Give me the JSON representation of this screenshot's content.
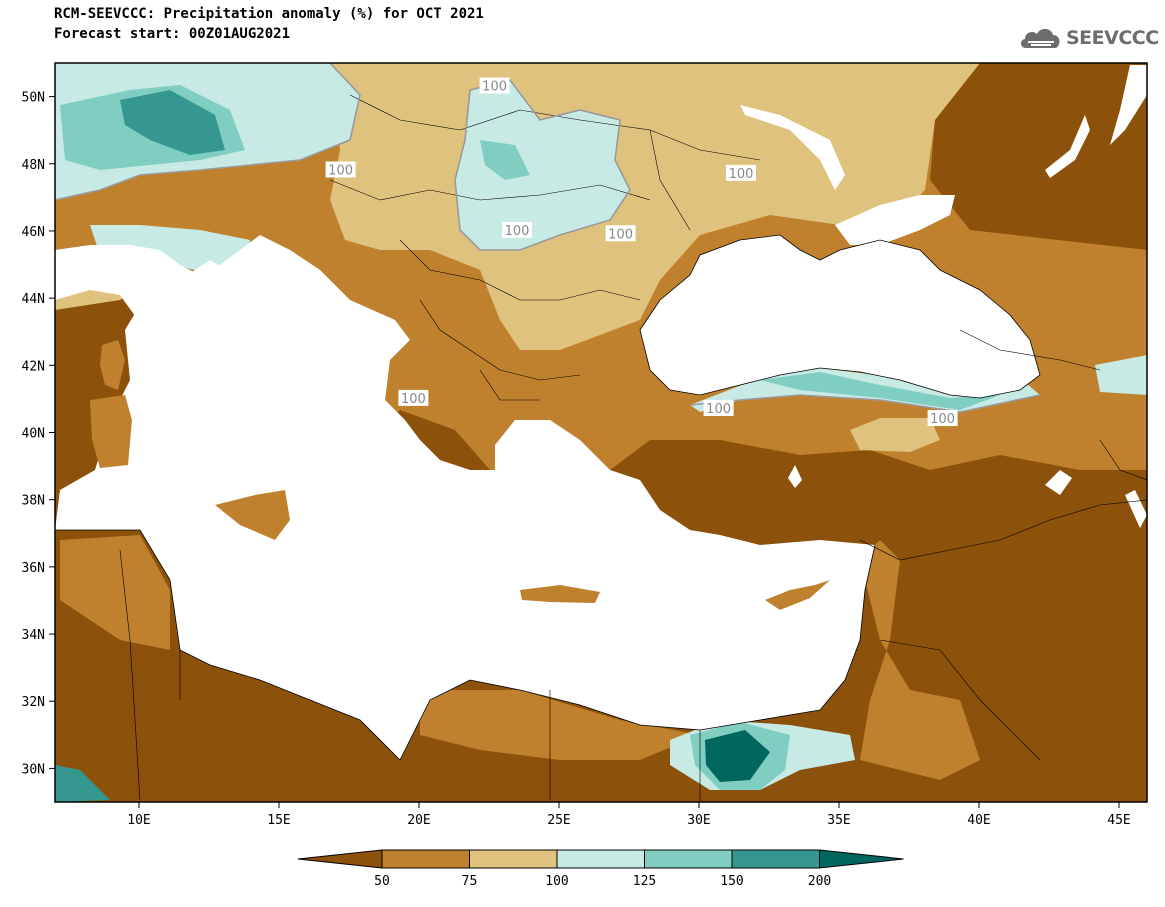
{
  "header": {
    "title_line1": "RCM-SEEVCCC: Precipitation anomaly (%) for OCT 2021",
    "title_line2": "Forecast start: 00Z01AUG2021",
    "logo_text": "SEEVCCC",
    "logo_icon": "cloud-icon"
  },
  "map": {
    "lon_range": [
      7,
      46
    ],
    "lat_range": [
      29,
      51
    ],
    "lat_ticks": [
      {
        "value": 50,
        "label": "50N"
      },
      {
        "value": 48,
        "label": "48N"
      },
      {
        "value": 46,
        "label": "46N"
      },
      {
        "value": 44,
        "label": "44N"
      },
      {
        "value": 42,
        "label": "42N"
      },
      {
        "value": 40,
        "label": "40N"
      },
      {
        "value": 38,
        "label": "38N"
      },
      {
        "value": 36,
        "label": "36N"
      },
      {
        "value": 34,
        "label": "34N"
      },
      {
        "value": 32,
        "label": "32N"
      },
      {
        "value": 30,
        "label": "30N"
      }
    ],
    "lon_ticks": [
      {
        "value": 10,
        "label": "10E"
      },
      {
        "value": 15,
        "label": "15E"
      },
      {
        "value": 20,
        "label": "20E"
      },
      {
        "value": 25,
        "label": "25E"
      },
      {
        "value": 30,
        "label": "30E"
      },
      {
        "value": 35,
        "label": "35E"
      },
      {
        "value": 40,
        "label": "40E"
      },
      {
        "value": 45,
        "label": "45E"
      }
    ],
    "contour_labels": [
      {
        "text": "100",
        "lon": 22.7,
        "lat": 50.3
      },
      {
        "text": "100",
        "lon": 17.2,
        "lat": 47.8
      },
      {
        "text": "100",
        "lon": 23.5,
        "lat": 46.0
      },
      {
        "text": "100",
        "lon": 27.2,
        "lat": 45.9
      },
      {
        "text": "100",
        "lon": 31.5,
        "lat": 47.7
      },
      {
        "text": "100",
        "lon": 19.8,
        "lat": 41.0
      },
      {
        "text": "100",
        "lon": 30.7,
        "lat": 40.7
      },
      {
        "text": "100",
        "lon": 38.7,
        "lat": 40.4
      }
    ],
    "colors": {
      "land_white": "#ffffff",
      "very_dry": "#8c510a",
      "dry": "#bf812d",
      "slightly_dry": "#dfc27d",
      "slightly_wet": "#c7eae5",
      "wet": "#80cdc1",
      "very_wet": "#35978f",
      "extreme_wet": "#01665e"
    }
  },
  "colorbar": {
    "segments": [
      {
        "color": "#8c510a"
      },
      {
        "color": "#bf812d"
      },
      {
        "color": "#dfc27d"
      },
      {
        "color": "#c7eae5"
      },
      {
        "color": "#80cdc1"
      },
      {
        "color": "#35978f"
      },
      {
        "color": "#01665e"
      }
    ],
    "labels": [
      "50",
      "75",
      "100",
      "125",
      "150",
      "200"
    ]
  }
}
